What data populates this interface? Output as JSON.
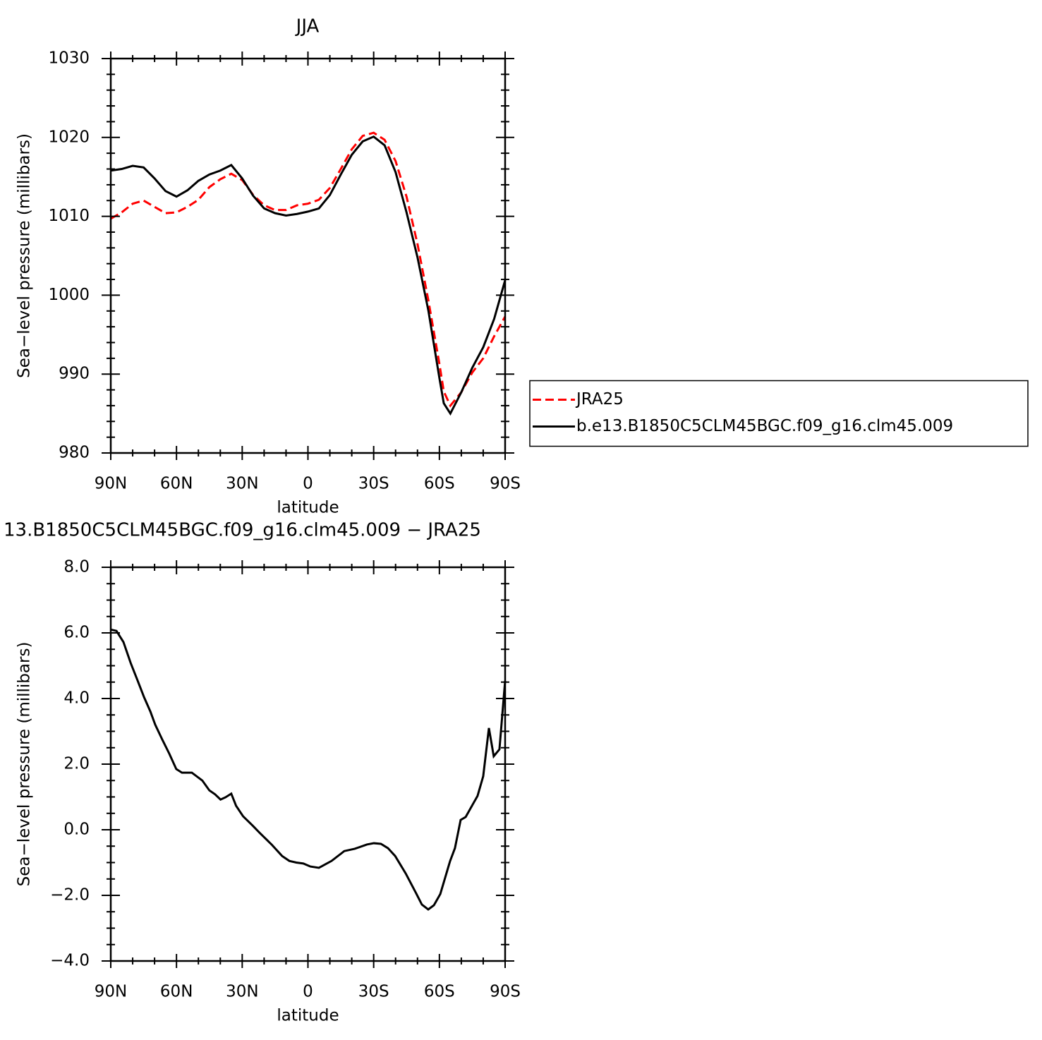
{
  "chart_data": [
    {
      "type": "line",
      "title": "JJA",
      "ylabel": "Sea−level pressure (millibars)",
      "xlabel": "latitude",
      "xlim": [
        90,
        -90
      ],
      "ylim": [
        980,
        1030
      ],
      "xticks": [
        {
          "value": 90,
          "label": "90N"
        },
        {
          "value": 60,
          "label": "60N"
        },
        {
          "value": 30,
          "label": "30N"
        },
        0,
        {
          "value": -30,
          "label": "30S"
        },
        {
          "value": -60,
          "label": "60S"
        },
        {
          "value": -90,
          "label": "90S"
        }
      ],
      "xminorticks": [
        80,
        70,
        50,
        40,
        20,
        10,
        -10,
        -20,
        -40,
        -50,
        -70,
        -80
      ],
      "yticks": [
        980,
        990,
        1000,
        1010,
        1020,
        1030
      ],
      "yminorticks": [
        982,
        984,
        986,
        988,
        992,
        994,
        996,
        998,
        1002,
        1004,
        1006,
        1008,
        1012,
        1014,
        1016,
        1018,
        1022,
        1024,
        1026,
        1028
      ],
      "legend_position": "right",
      "x": [
        90,
        85,
        80,
        75,
        70,
        65,
        60,
        55,
        50,
        45,
        40,
        35,
        30,
        25,
        20,
        15,
        10,
        5,
        0,
        -5,
        -10,
        -15,
        -20,
        -25,
        -30,
        -35,
        -40,
        -45,
        -50,
        -55,
        -60,
        -62,
        -65,
        -70,
        -75,
        -80,
        -85,
        -90
      ],
      "series": [
        {
          "name": "JRA25",
          "color": "#ff0000",
          "linestyle": "dashed",
          "values": [
            1009.7,
            1010.5,
            1011.6,
            1012.0,
            1011.2,
            1010.4,
            1010.5,
            1011.2,
            1012.1,
            1013.7,
            1014.7,
            1015.4,
            1014.6,
            1012.7,
            1011.4,
            1010.8,
            1010.8,
            1011.4,
            1011.6,
            1012.1,
            1013.6,
            1016.0,
            1018.5,
            1020.2,
            1020.6,
            1019.7,
            1017.0,
            1012.5,
            1006.5,
            999.3,
            991.3,
            987.8,
            986.0,
            987.7,
            990.2,
            992.0,
            994.8,
            997.3
          ]
        },
        {
          "name": "b.e13.B1850C5CLM45BGC.f09_g16.clm45.009",
          "color": "#000000",
          "linestyle": "solid",
          "values": [
            1015.8,
            1016.0,
            1016.4,
            1016.2,
            1014.8,
            1013.2,
            1012.5,
            1013.3,
            1014.5,
            1015.3,
            1015.8,
            1016.5,
            1014.8,
            1012.6,
            1011.0,
            1010.4,
            1010.1,
            1010.3,
            1010.6,
            1011.0,
            1012.7,
            1015.3,
            1017.8,
            1019.5,
            1020.1,
            1019.0,
            1015.6,
            1010.5,
            1004.8,
            998.0,
            989.5,
            986.3,
            985.0,
            987.7,
            990.8,
            993.4,
            997.0,
            1001.9
          ]
        }
      ]
    },
    {
      "type": "line",
      "title": "13.B1850C5CLM45BGC.f09_g16.clm45.009 − JRA25",
      "ylabel": "Sea−level pressure (millibars)",
      "xlabel": "latitude",
      "xlim": [
        90,
        -90
      ],
      "ylim": [
        -4,
        8
      ],
      "xticks": [
        {
          "value": 90,
          "label": "90N"
        },
        {
          "value": 60,
          "label": "60N"
        },
        {
          "value": 30,
          "label": "30N"
        },
        0,
        {
          "value": -30,
          "label": "30S"
        },
        {
          "value": -60,
          "label": "60S"
        },
        {
          "value": -90,
          "label": "90S"
        }
      ],
      "xminorticks": [
        80,
        70,
        50,
        40,
        20,
        10,
        -10,
        -20,
        -40,
        -50,
        -70,
        -80
      ],
      "yticks": [
        {
          "value": -4,
          "label": "−4.0"
        },
        {
          "value": -2,
          "label": "−2.0"
        },
        {
          "value": 0,
          "label": "0.0"
        },
        {
          "value": 2,
          "label": "2.0"
        },
        {
          "value": 4,
          "label": "4.0"
        },
        {
          "value": 6,
          "label": "6.0"
        },
        {
          "value": 8,
          "label": "8.0"
        }
      ],
      "yminorticks": [
        -3.5,
        -3,
        -2.5,
        -1.5,
        -1,
        -0.5,
        0.5,
        1,
        1.5,
        2.5,
        3,
        3.5,
        4.5,
        5,
        5.5,
        6.5,
        7,
        7.5
      ],
      "x": [
        90,
        87.4,
        84.2,
        80.9,
        77.7,
        74.8,
        71.9,
        69.7,
        66.5,
        63.3,
        60.1,
        57.5,
        53.0,
        48.2,
        45.0,
        42.4,
        39.9,
        37.6,
        35.0,
        32.8,
        29.6,
        25.3,
        22.1,
        16.6,
        11.8,
        8.5,
        5.3,
        2.1,
        -1.1,
        -5.0,
        -10.8,
        -16.6,
        -21.4,
        -26.9,
        -30.1,
        -33.3,
        -36.5,
        -39.8,
        -44.6,
        -49.4,
        -52.0,
        -54.9,
        -57.5,
        -60.4,
        -64.9,
        -67.1,
        -69.7,
        -72.0,
        -75.2,
        -77.4,
        -80.0,
        -82.6,
        -84.8,
        -87.4,
        -90
      ],
      "series": [
        {
          "color": "#000000",
          "linestyle": "solid",
          "values": [
            6.1,
            6.06,
            5.72,
            5.08,
            4.54,
            4.04,
            3.6,
            3.2,
            2.75,
            2.32,
            1.85,
            1.74,
            1.74,
            1.5,
            1.2,
            1.08,
            0.92,
            0.99,
            1.1,
            0.73,
            0.41,
            0.13,
            -0.09,
            -0.45,
            -0.8,
            -0.95,
            -1.0,
            -1.03,
            -1.12,
            -1.16,
            -0.95,
            -0.65,
            -0.58,
            -0.45,
            -0.41,
            -0.43,
            -0.56,
            -0.8,
            -1.33,
            -1.94,
            -2.28,
            -2.43,
            -2.3,
            -1.96,
            -0.95,
            -0.56,
            0.3,
            0.39,
            0.77,
            1.03,
            1.63,
            3.1,
            2.24,
            2.45,
            4.54
          ]
        }
      ]
    }
  ]
}
